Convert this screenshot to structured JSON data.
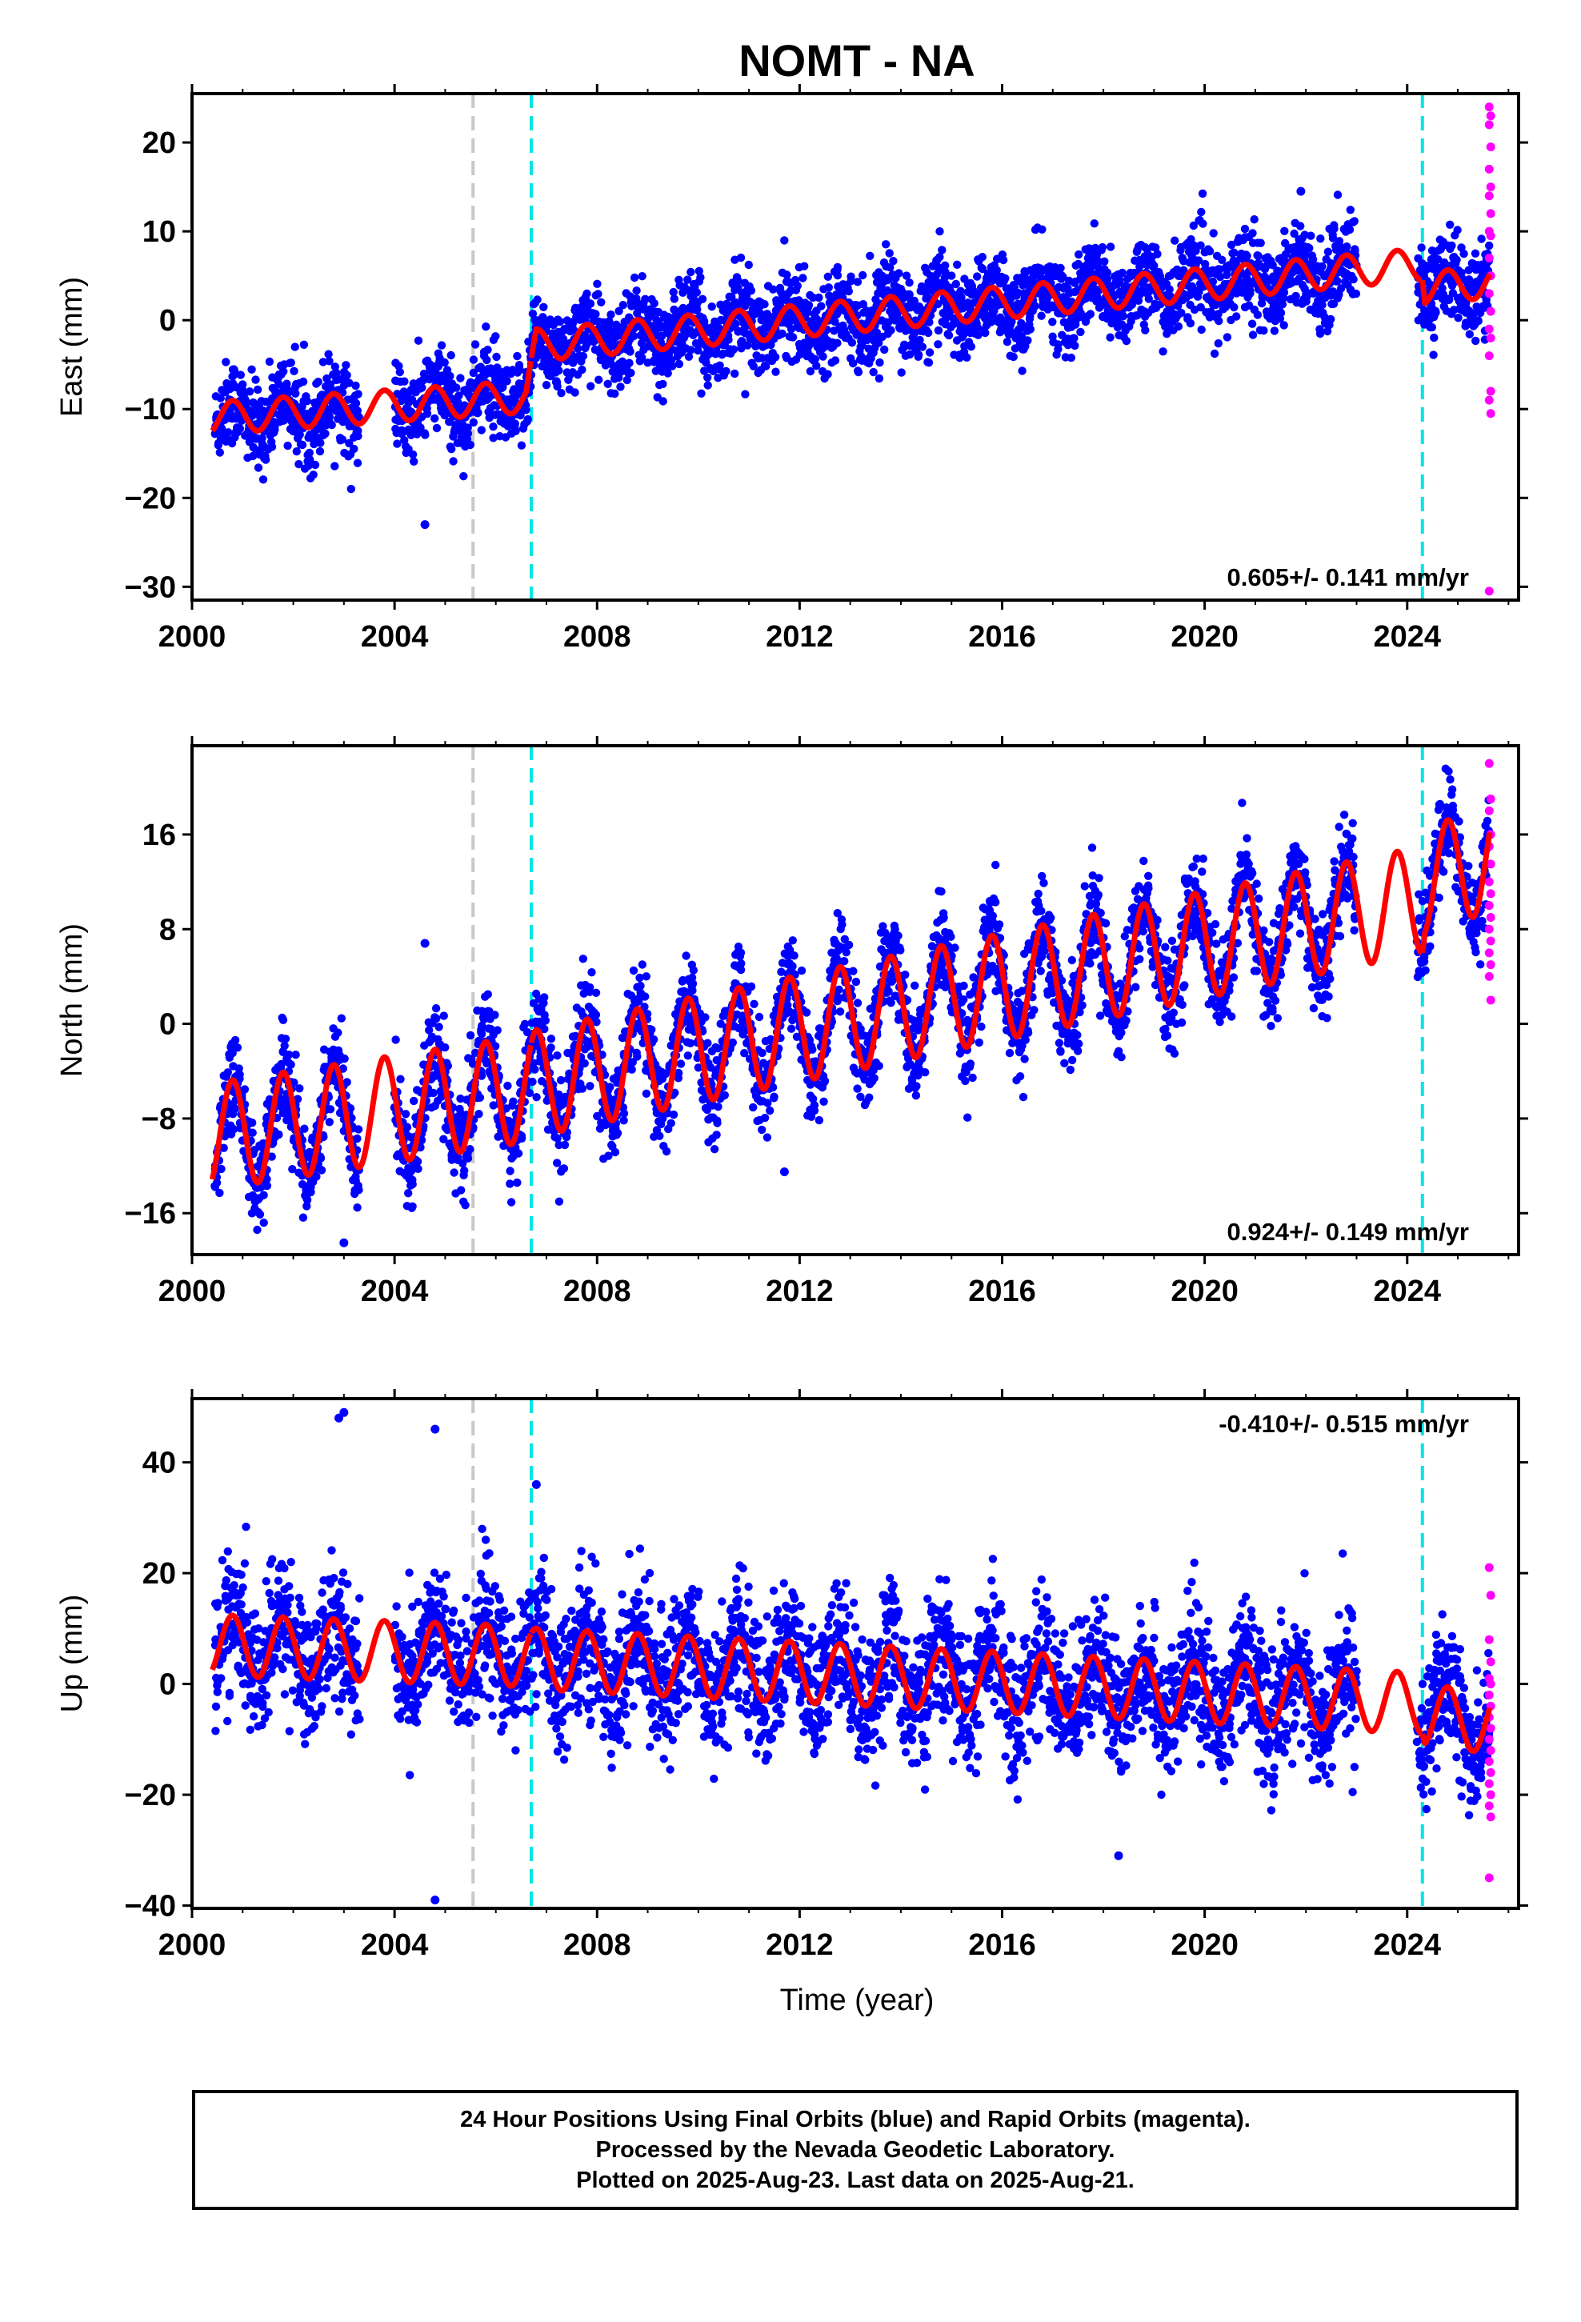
{
  "chart_data": {
    "type": "scatter",
    "title": "NOMT - NA",
    "xlabel": "Time (year)",
    "x_ticks": [
      2000,
      2004,
      2008,
      2012,
      2016,
      2020,
      2024
    ],
    "xlim": [
      2000.0,
      2026.2
    ],
    "vertical_lines": [
      {
        "x": 2005.55,
        "color": "#c8c8c8",
        "style": "dashed"
      },
      {
        "x": 2006.7,
        "color": "#00e5e5",
        "style": "dashed"
      },
      {
        "x": 2024.3,
        "color": "#00e5e5",
        "style": "dashed"
      }
    ],
    "colors": {
      "final": "#0000ff",
      "rapid": "#ff00ff",
      "model": "#ff0000"
    },
    "panels": [
      {
        "name": "east",
        "ylabel": "East (mm)",
        "ylim": [
          -31.5,
          25.5
        ],
        "y_ticks": [
          20,
          10,
          0,
          -10,
          -20,
          -30
        ],
        "rate_label": "0.605+/- 0.141 mm/yr",
        "rate_position": "bottom-right",
        "model_trend": [
          [
            2000.4,
            -11.0
          ],
          [
            2006.6,
            -8.6
          ],
          [
            2006.8,
            -2.8
          ],
          [
            2024.3,
            6.3
          ],
          [
            2024.35,
            3.6
          ],
          [
            2025.6,
            4.3
          ]
        ],
        "seasonal_amp": 1.8,
        "noise": 2.4,
        "outliers": [
          [
            2004.6,
            -23
          ],
          [
            2021.9,
            14.5
          ]
        ],
        "rapid_points": [
          24,
          23,
          22,
          19.5,
          17,
          15,
          14,
          12,
          10,
          9.5,
          7,
          5,
          3,
          1,
          -1,
          -2,
          -4,
          -8,
          -9,
          -10.5,
          -30.5
        ]
      },
      {
        "name": "north",
        "ylabel": "North (mm)",
        "ylim": [
          -19.5,
          23.5
        ],
        "y_ticks": [
          16,
          8,
          0,
          -8,
          -16
        ],
        "rate_label": "0.924+/- 0.149 mm/yr",
        "rate_position": "bottom-right",
        "model_trend": [
          [
            2000.4,
            -9.5
          ],
          [
            2006.6,
            -5.5
          ],
          [
            2006.8,
            -5.0
          ],
          [
            2024.3,
            10.5
          ],
          [
            2024.35,
            12.0
          ],
          [
            2025.6,
            14.0
          ]
        ],
        "seasonal_amp": 4.5,
        "noise": 2.0,
        "outliers": [
          [
            2004.6,
            6.8
          ],
          [
            2003.0,
            -18.5
          ],
          [
            2011.7,
            -12.5
          ]
        ],
        "rapid_points": [
          22,
          19,
          18,
          16,
          15,
          13.5,
          12,
          11,
          10,
          9,
          8,
          7,
          6,
          5,
          4,
          2
        ]
      },
      {
        "name": "up",
        "ylabel": "Up (mm)",
        "ylim": [
          -40.5,
          51.5
        ],
        "y_ticks": [
          40,
          20,
          0,
          -20,
          -40
        ],
        "rate_label": "-0.410+/- 0.515 mm/yr",
        "rate_position": "top-right",
        "model_trend": [
          [
            2000.4,
            7.0
          ],
          [
            2006.6,
            5.0
          ],
          [
            2006.8,
            4.5
          ],
          [
            2024.3,
            -3.5
          ],
          [
            2024.35,
            -5.5
          ],
          [
            2025.6,
            -7.0
          ]
        ],
        "seasonal_amp": 5.5,
        "noise": 6.0,
        "outliers": [
          [
            2003.0,
            49
          ],
          [
            2002.9,
            48
          ],
          [
            2004.8,
            46
          ],
          [
            2004.8,
            -39
          ],
          [
            2006.8,
            36
          ],
          [
            2018.3,
            -31
          ]
        ],
        "rapid_points": [
          21,
          16,
          8,
          4,
          1,
          0,
          -2,
          -4,
          -6,
          -8,
          -10,
          -12,
          -14,
          -16,
          -18,
          -20,
          -22,
          -24,
          -35
        ]
      }
    ]
  },
  "footer": {
    "line1": "24 Hour Positions Using Final Orbits (blue) and Rapid Orbits (magenta).",
    "line2": "Processed by the Nevada Geodetic Laboratory.",
    "line3": "Plotted on 2025-Aug-23. Last data on 2025-Aug-21."
  }
}
